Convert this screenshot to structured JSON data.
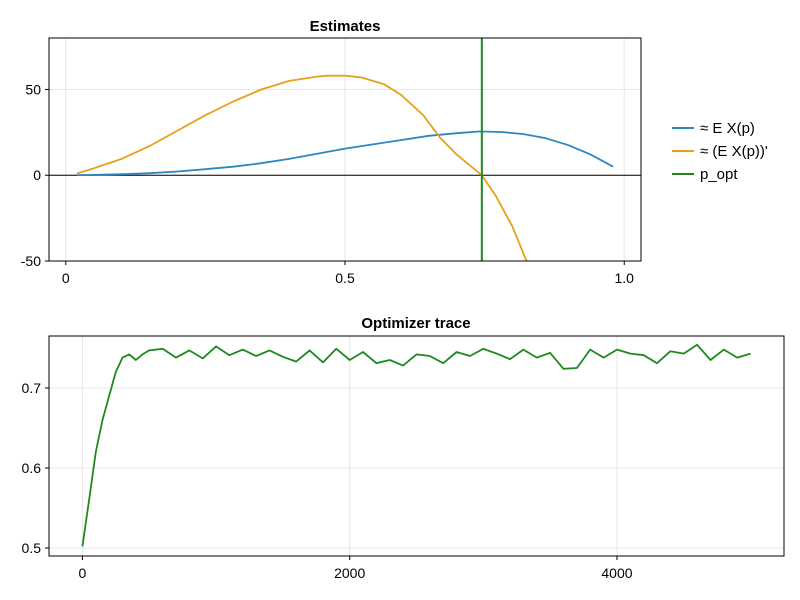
{
  "chart_data": [
    {
      "type": "line",
      "title": "Estimates",
      "xlabel": "",
      "ylabel": "",
      "xlim": [
        -0.03,
        1.03
      ],
      "ylim": [
        -50,
        80
      ],
      "xticks": [
        0,
        0.5,
        1.0
      ],
      "xtick_labels": [
        "0",
        "0.5",
        "1.0"
      ],
      "yticks": [
        -50,
        0,
        50
      ],
      "ytick_labels": [
        "-50",
        "0",
        "50"
      ],
      "grid": true,
      "legend_position": "right",
      "hline": 0,
      "series": [
        {
          "name": "≈ E X(p)",
          "color": "#2e86c1",
          "x": [
            0.02,
            0.05,
            0.1,
            0.15,
            0.2,
            0.25,
            0.3,
            0.35,
            0.4,
            0.45,
            0.5,
            0.55,
            0.6,
            0.65,
            0.7,
            0.74,
            0.78,
            0.82,
            0.86,
            0.9,
            0.94,
            0.98
          ],
          "y": [
            0.1,
            0.2,
            0.6,
            1.2,
            2.2,
            3.5,
            5.0,
            7.0,
            9.5,
            12.5,
            15.5,
            18.0,
            20.5,
            23.0,
            24.5,
            25.5,
            25.2,
            24.0,
            21.5,
            17.5,
            12.0,
            5.0
          ]
        },
        {
          "name": "≈ (E X(p))'",
          "color": "#e6a11b",
          "x": [
            0.02,
            0.05,
            0.1,
            0.15,
            0.2,
            0.25,
            0.3,
            0.35,
            0.4,
            0.45,
            0.47,
            0.5,
            0.53,
            0.57,
            0.6,
            0.64,
            0.67,
            0.7,
            0.73,
            0.745,
            0.77,
            0.8,
            0.825
          ],
          "y": [
            1.0,
            4.0,
            9.5,
            17.0,
            26.0,
            35.0,
            43.0,
            50.0,
            55.0,
            57.5,
            58.0,
            58.0,
            57.0,
            53.0,
            47.0,
            35.0,
            22.0,
            12.0,
            4.0,
            0.0,
            -12.0,
            -30.0,
            -50.0
          ]
        },
        {
          "name": "p_opt",
          "color": "#1e8a1e",
          "vline": 0.745
        }
      ]
    },
    {
      "type": "line",
      "title": "Optimizer trace",
      "xlabel": "",
      "ylabel": "",
      "xlim": [
        -250,
        5250
      ],
      "ylim": [
        0.49,
        0.765
      ],
      "xticks": [
        0,
        2000,
        4000
      ],
      "xtick_labels": [
        "0",
        "2000",
        "4000"
      ],
      "yticks": [
        0.5,
        0.6,
        0.7
      ],
      "ytick_labels": [
        "0.5",
        "0.6",
        "0.7"
      ],
      "grid": true,
      "series": [
        {
          "color": "#1e8a1e",
          "x": [
            0,
            50,
            100,
            150,
            200,
            250,
            300,
            350,
            400,
            450,
            500,
            600,
            700,
            800,
            900,
            1000,
            1100,
            1200,
            1300,
            1400,
            1500,
            1600,
            1700,
            1800,
            1900,
            2000,
            2100,
            2200,
            2300,
            2400,
            2500,
            2600,
            2700,
            2800,
            2900,
            3000,
            3100,
            3200,
            3300,
            3400,
            3500,
            3600,
            3700,
            3800,
            3900,
            4000,
            4100,
            4200,
            4300,
            4400,
            4500,
            4600,
            4700,
            4800,
            4900,
            5000
          ],
          "y": [
            0.502,
            0.56,
            0.62,
            0.66,
            0.69,
            0.72,
            0.738,
            0.742,
            0.735,
            0.742,
            0.747,
            0.749,
            0.738,
            0.747,
            0.737,
            0.752,
            0.741,
            0.748,
            0.74,
            0.747,
            0.739,
            0.733,
            0.747,
            0.732,
            0.749,
            0.735,
            0.745,
            0.731,
            0.735,
            0.728,
            0.742,
            0.74,
            0.731,
            0.745,
            0.74,
            0.749,
            0.743,
            0.736,
            0.748,
            0.738,
            0.744,
            0.724,
            0.725,
            0.748,
            0.738,
            0.748,
            0.743,
            0.741,
            0.731,
            0.746,
            0.743,
            0.754,
            0.735,
            0.748,
            0.738,
            0.743
          ]
        }
      ]
    }
  ]
}
